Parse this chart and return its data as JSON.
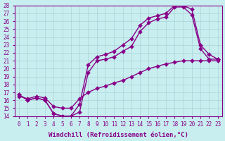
{
  "xlabel": "Windchill (Refroidissement éolien,°C)",
  "xlim_min": -0.5,
  "xlim_max": 23.5,
  "ylim_min": 14,
  "ylim_max": 28,
  "xticks": [
    0,
    1,
    2,
    3,
    4,
    5,
    6,
    7,
    8,
    9,
    10,
    11,
    12,
    13,
    14,
    15,
    16,
    17,
    18,
    19,
    20,
    21,
    22,
    23
  ],
  "yticks": [
    14,
    15,
    16,
    17,
    18,
    19,
    20,
    21,
    22,
    23,
    24,
    25,
    26,
    27,
    28
  ],
  "bg_color": "#c8eef0",
  "grid_color": "#aad4d8",
  "line_color": "#880088",
  "curve1_x": [
    0,
    1,
    2,
    3,
    4,
    5,
    6,
    7,
    8,
    9,
    10,
    11,
    12,
    13,
    14,
    15,
    16,
    17,
    18,
    19,
    20,
    21,
    22,
    23
  ],
  "curve1_y": [
    16.7,
    16.0,
    16.3,
    16.0,
    14.3,
    14.0,
    14.0,
    15.5,
    20.5,
    21.5,
    21.8,
    22.2,
    23.0,
    23.8,
    25.5,
    26.4,
    26.7,
    27.0,
    28.0,
    28.0,
    27.5,
    23.0,
    21.8,
    21.2
  ],
  "curve2_x": [
    0,
    1,
    2,
    3,
    4,
    5,
    6,
    7,
    8,
    9,
    10,
    11,
    12,
    13,
    14,
    15,
    16,
    17,
    18,
    19,
    20,
    21,
    22,
    23
  ],
  "curve2_y": [
    16.7,
    16.0,
    16.3,
    16.0,
    14.3,
    14.0,
    14.0,
    14.5,
    19.5,
    21.0,
    21.2,
    21.5,
    22.2,
    22.8,
    24.7,
    25.8,
    26.3,
    26.5,
    27.8,
    27.8,
    26.8,
    22.5,
    21.2,
    21.2
  ],
  "curve3_x": [
    0,
    1,
    2,
    3,
    4,
    5,
    6,
    7,
    8,
    9,
    10,
    11,
    12,
    13,
    14,
    15,
    16,
    17,
    18,
    19,
    20,
    21,
    22,
    23
  ],
  "curve3_y": [
    16.5,
    16.2,
    16.5,
    16.3,
    15.2,
    15.0,
    15.0,
    16.2,
    17.0,
    17.5,
    17.8,
    18.2,
    18.5,
    19.0,
    19.5,
    20.0,
    20.3,
    20.6,
    20.8,
    21.0,
    21.0,
    21.0,
    21.0,
    21.0
  ],
  "markersize": 3,
  "linewidth": 1.0,
  "tick_fontsize": 5.5,
  "label_fontsize": 6.5
}
